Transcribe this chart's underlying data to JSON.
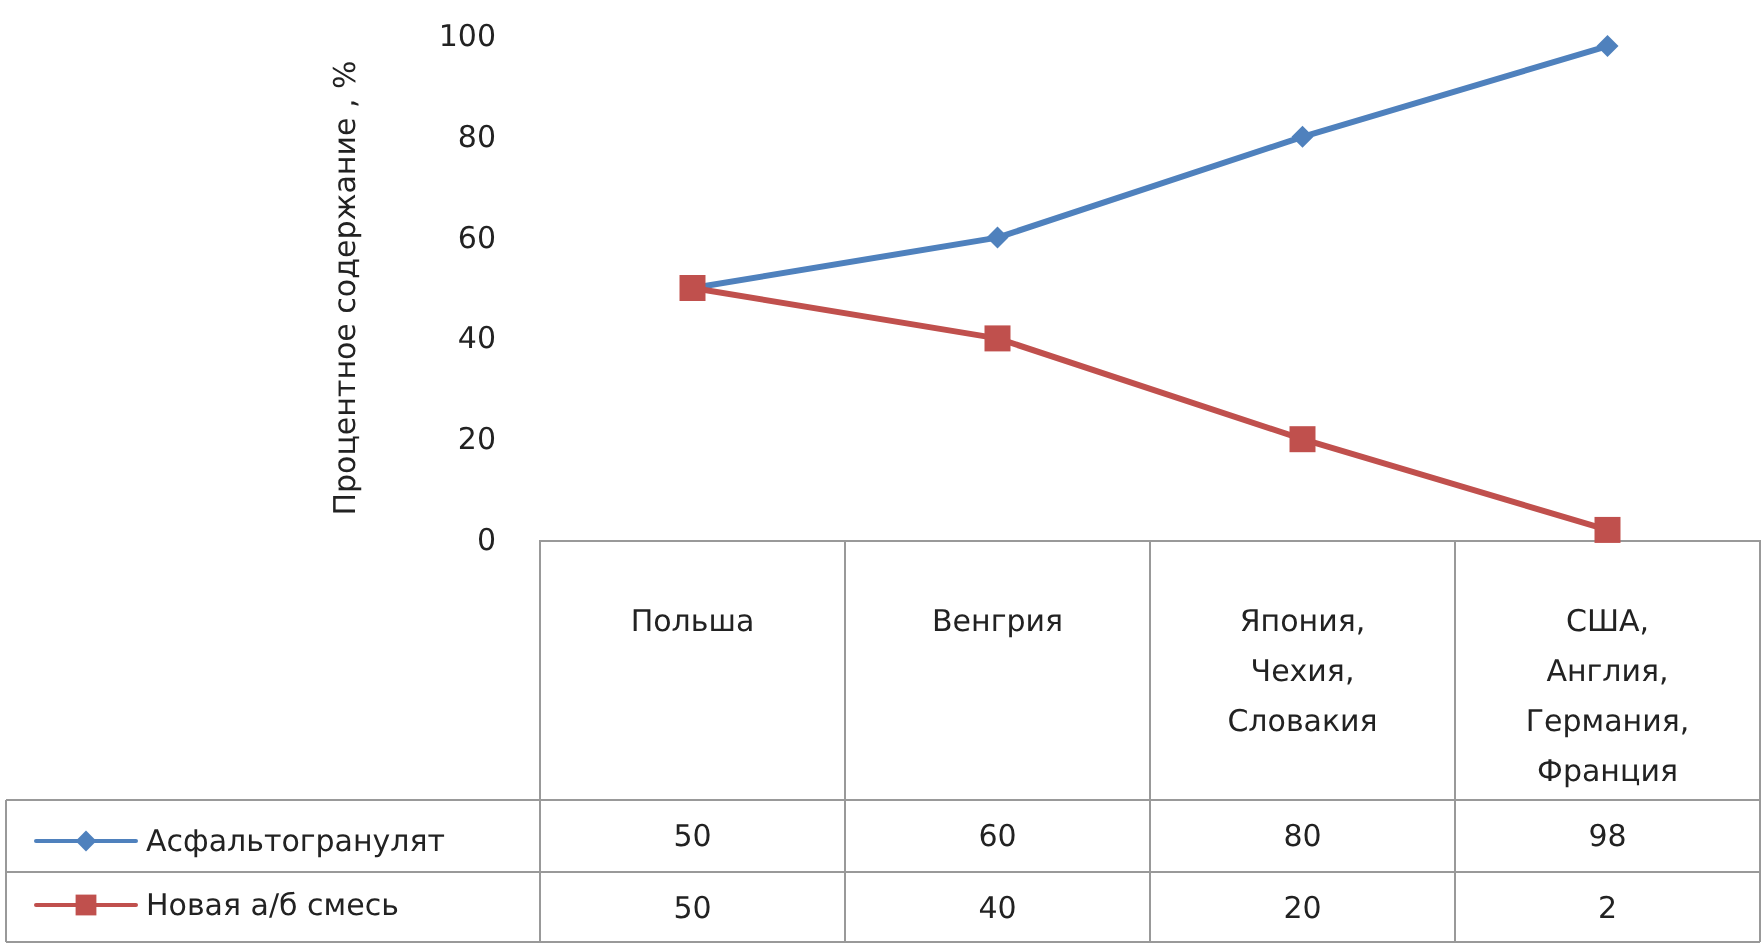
{
  "chart_data": {
    "type": "line",
    "ylabel": "Процентное содержание , %",
    "categories": [
      "Польша",
      "Венгрия",
      "Япония,\nЧехия,\nСловакия",
      "США,\nАнглия,\nГермания,\nФранция"
    ],
    "series": [
      {
        "name": "Асфальтогранулят",
        "color": "#4f81bd",
        "marker": "diamond",
        "values": [
          50,
          60,
          80,
          98
        ]
      },
      {
        "name": "Новая а/б смесь",
        "color": "#c0504d",
        "marker": "square",
        "values": [
          50,
          40,
          20,
          2
        ]
      }
    ],
    "ylim": [
      0,
      100
    ],
    "yticks": [
      0,
      20,
      40,
      60,
      80,
      100
    ],
    "grid": false,
    "legend": "bottom left",
    "data_labels": true,
    "line_style": "solid"
  }
}
